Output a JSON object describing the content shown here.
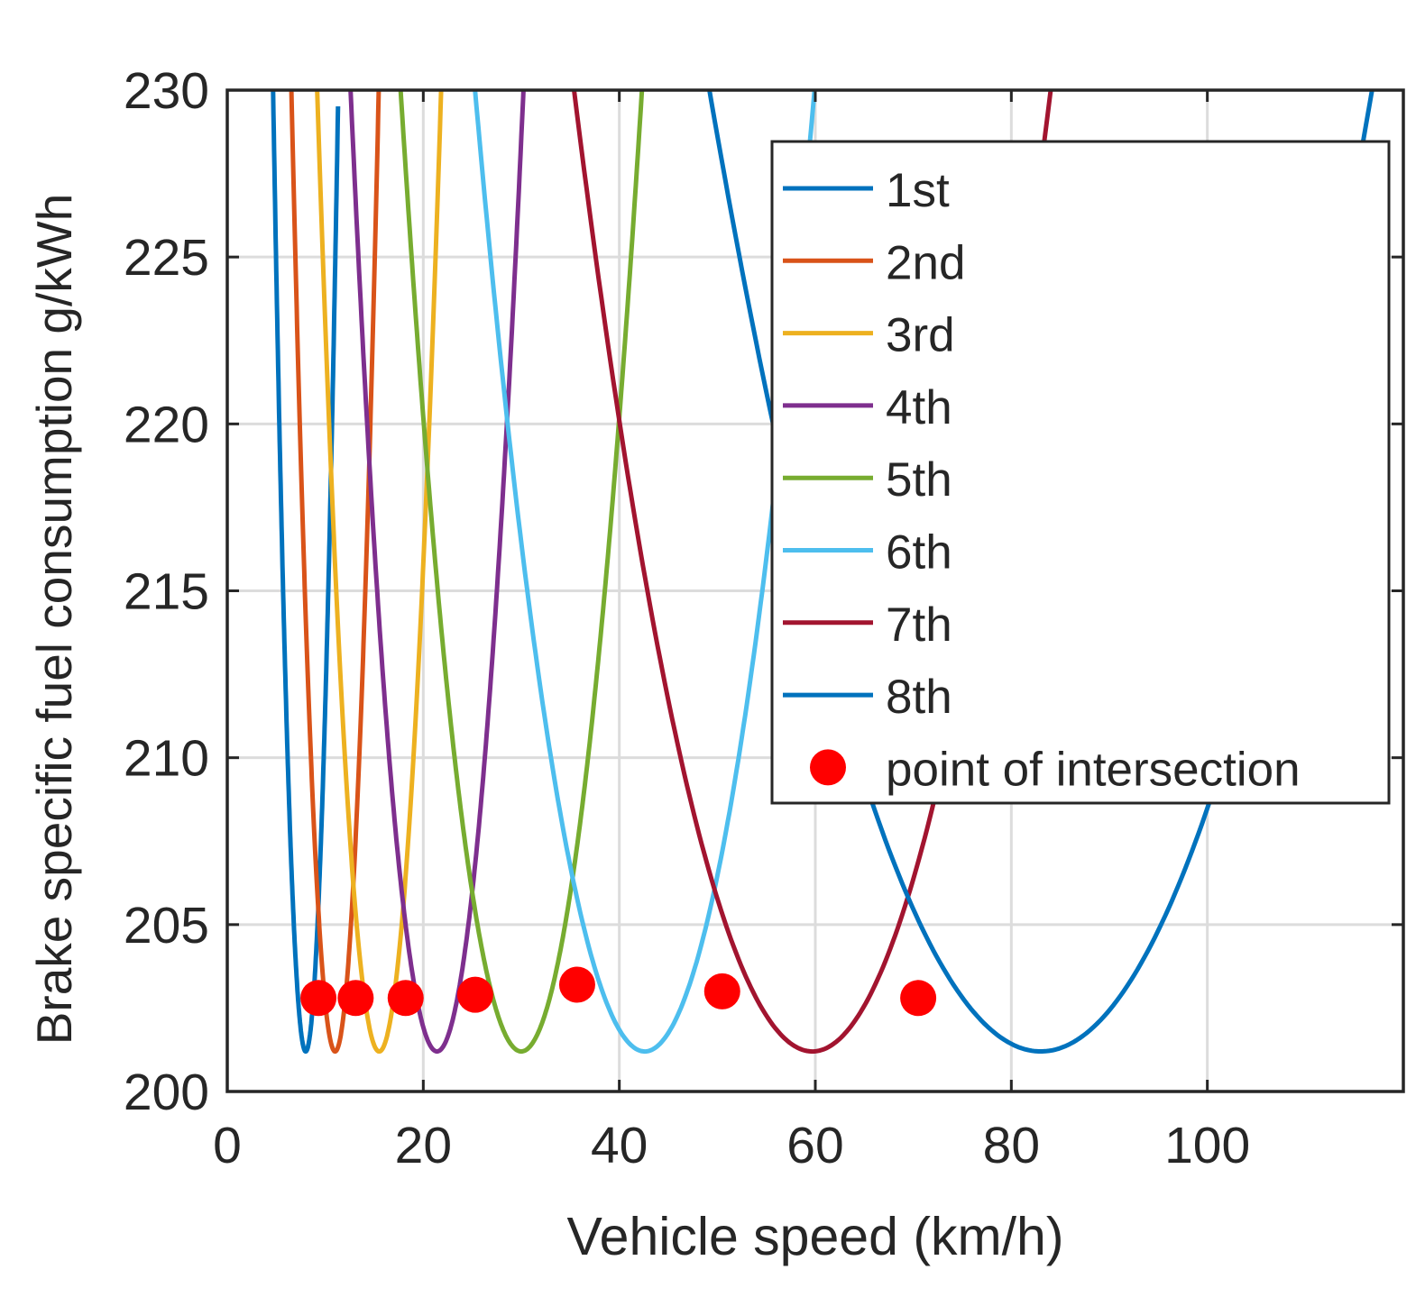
{
  "chart_data": {
    "type": "line",
    "title": "",
    "xlabel": "Vehicle speed (km/h)",
    "ylabel": "Brake specific fuel consumption g/kWh",
    "xlim": [
      0,
      120
    ],
    "ylim": [
      200,
      230
    ],
    "xticks": [
      0,
      20,
      40,
      60,
      80,
      100
    ],
    "yticks": [
      200,
      205,
      210,
      215,
      220,
      225,
      230
    ],
    "grid": true,
    "legend_position": "top-right",
    "series": [
      {
        "name": "1st",
        "color": "#0072BD",
        "vmin": 8.0,
        "ymin": 201.2,
        "k": 2.6,
        "xstart": 4.3,
        "xend": 11.3
      },
      {
        "name": "2nd",
        "color": "#D95319",
        "vmin": 11.0,
        "ymin": 201.2,
        "k": 1.45,
        "xstart": 5.9,
        "xend": 15.9
      },
      {
        "name": "3rd",
        "color": "#EDB120",
        "vmin": 15.5,
        "ymin": 201.2,
        "k": 0.72,
        "xstart": 8.3,
        "xend": 22.4
      },
      {
        "name": "4th",
        "color": "#7E2F8E",
        "vmin": 21.4,
        "ymin": 201.2,
        "k": 0.37,
        "xstart": 11.4,
        "xend": 30.9
      },
      {
        "name": "5th",
        "color": "#77AC30",
        "vmin": 30.0,
        "ymin": 201.2,
        "k": 0.19,
        "xstart": 16.0,
        "xend": 43.3
      },
      {
        "name": "6th",
        "color": "#4DBEEE",
        "vmin": 42.6,
        "ymin": 201.2,
        "k": 0.096,
        "xstart": 22.6,
        "xend": 61.5
      },
      {
        "name": "7th",
        "color": "#A2142F",
        "vmin": 59.7,
        "ymin": 201.2,
        "k": 0.0487,
        "xstart": 31.4,
        "xend": 86.4
      },
      {
        "name": "8th",
        "color": "#0072BD",
        "vmin": 83.0,
        "ymin": 201.2,
        "k": 0.0252,
        "xstart": 43.5,
        "xend": 120.0
      }
    ],
    "points": {
      "name": "point of intersection",
      "color": "#FF0000",
      "x": [
        9.3,
        13.1,
        18.2,
        25.3,
        35.7,
        50.5,
        70.5
      ],
      "y": [
        202.8,
        202.8,
        202.8,
        202.9,
        203.2,
        203.0,
        202.8
      ]
    }
  }
}
